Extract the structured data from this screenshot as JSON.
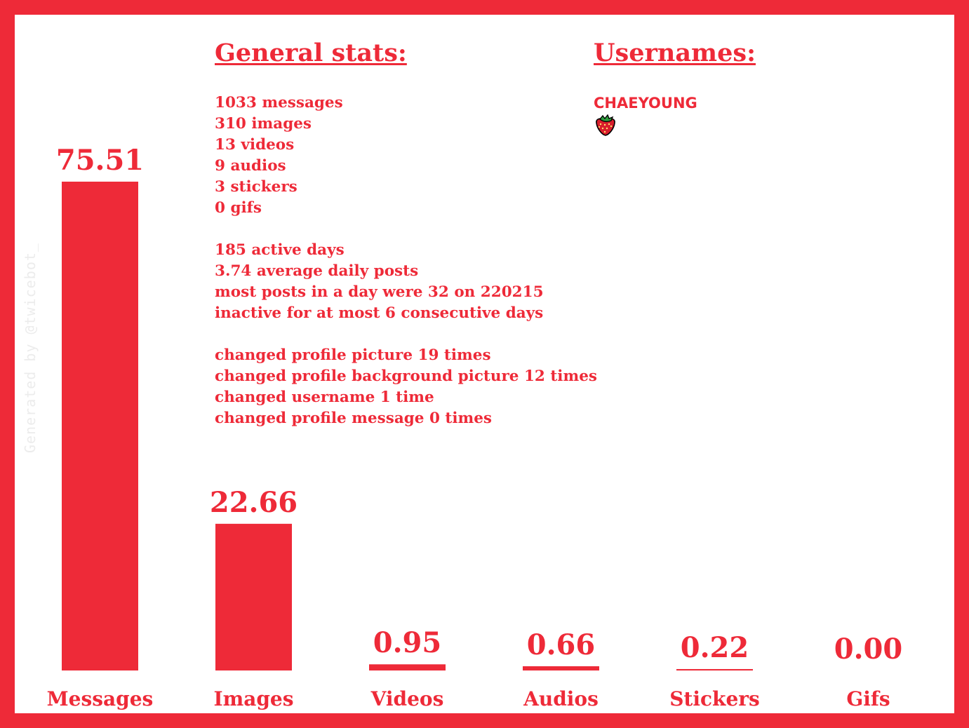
{
  "watermark": "Generated by @twicebot_",
  "colors": {
    "accent": "#EE2A38",
    "background": "#FFFFFF",
    "watermark": "#ECECEC"
  },
  "general_stats": {
    "heading": "General stats:",
    "counts": [
      "1033 messages",
      "310 images",
      "13 videos",
      "9 audios",
      "3 stickers",
      "0 gifs"
    ],
    "activity": [
      "185 active days",
      "3.74 average daily posts",
      "most posts in a day were 32 on 220215",
      "inactive for at most 6 consecutive days"
    ],
    "profile": [
      "changed profile picture 19 times",
      "changed profile background picture 12 times",
      "changed username 1 time",
      "changed profile message 0 times"
    ]
  },
  "usernames": {
    "heading": "Usernames:",
    "items": [
      "CHAEYOUNG"
    ],
    "icons": [
      "strawberry-icon"
    ]
  },
  "chart_data": {
    "type": "bar",
    "categories": [
      "Messages",
      "Images",
      "Videos",
      "Audios",
      "Stickers",
      "Gifs"
    ],
    "values": [
      75.51,
      22.66,
      0.95,
      0.66,
      0.22,
      0.0
    ],
    "value_labels": [
      "75.51",
      "22.66",
      "0.95",
      "0.66",
      "0.22",
      "0.00"
    ],
    "ylim": [
      0,
      75.51
    ],
    "grid": false,
    "legend": "none"
  }
}
